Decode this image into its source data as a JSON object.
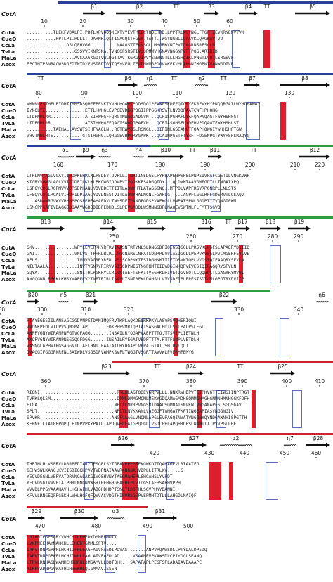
{
  "query_label": "CotA",
  "sequence_names": [
    "CotA",
    "CueO",
    "CcLa",
    "TvLa",
    "MaLa",
    "Asox"
  ],
  "blocks": [
    {
      "numbers": [
        "10",
        "20",
        "30",
        "40",
        "50",
        "60"
      ],
      "ss": [
        "β1",
        "β2",
        "TT",
        "β3",
        "β4",
        "TT",
        "β5"
      ],
      "rows": [
        "..........TLEKFVDALPI.PDTLKPVQQSKEKTYYEVTMEECTHQLHRD.LPPTRLWGYNGLFPGPTIEVKRNENVYVK",
        "...........RPTLPI.PDLLTTDARNRIQLTIGAGQSTFGGK.TATT..WGYNGNLLGPAVKLQRGKAVTVD",
        "...............DSLQFHVGG..........NAAGSTTFVNSGLLMHGRKVNTPVIQAGRNSRFSQLN",
        "..................GSSVVIKNTSNA.TVNGGFSRSTIVSQPMWVHGNAVNGGNPVFTPQG.ARIRID",
        "..................AVSAAGKGDTVWLDGTTAVTKGRGVIPVYSNVNGTLLLHGHDIKLPNGTIVNTLSRGSVF",
        "EPCTNTPSNRACWSDGFDINTDYEVSTPDTGVTQSYVFNLTEVDNWMGPDGVVKEKVMLINGNIMGPNIVANWGDTVE"
      ]
    },
    {
      "numbers": [
        "80",
        "90",
        "100",
        "110",
        "120",
        "130"
      ],
      "ss": [
        "TT",
        "β6",
        "η1",
        "TT",
        "η2",
        "TT",
        "β7",
        "β8"
      ],
      "rows": [
        "WMNNLPSTHFLPIDHTIHHSDSQHEEPEVKTVVHLHGGVTPDDSDGYPEAWFSKDFEQTGPYFKREVYHYPNQQRGAILWYHDHAMA",
        "IYNQLTE...............ETTLHWHGLEVPGEVDGGPQGIIPPGGKRSVTLNVDQPAATCWFHPHQHG",
        "LTDPNMLRR.............ATSIHWHGFFQRGTNWADGADGVN...QCPISPGHAFLYKFQAPNQAGTFWYHSHFGT",
        "LTDPNMLRR.............ATSIHWHGFFQAGTSWADGPAFVN...QCPIASGHSFLYDFHVPDQAGTFWYHSHLST",
        "..........TAEHALLAYSWTSIHFNAQLN..RGTRWYDGLRSNGL..QIPINLGSEAMLTFQAPHQWGIYWHHSHFTGW",
        "VHVTNNLHTE...........GTSIHWHGILQRGGEVHPNRYGAPK...QCAINPGETFTYRFTFDGENPGTYWYHSHSRAQYG"
      ]
    },
    {
      "numbers": [
        "160",
        "170",
        "180",
        "190",
        "200",
        "210",
        "220"
      ],
      "ss": [
        "α1",
        "β9",
        "η3",
        "η4",
        "β10",
        "TT",
        "β11",
        "TT",
        "β12"
      ],
      "rows": [
        "LTRLNVYAGLVGAYIIHDPKEKRLKLPSDEY.DVPLLITDRTINEDGSLFYPSAPENPSPSLPNPSIVPAFCGETILVNGKVWP",
        "KTGRVVAMGLAGLVVIEDDEILKLMLPKQWGIDDVPVIVQDKKFSADGQIDY...QLDVMTAAVGWFGDTLLTNGAIYPQ",
        "LSFQYCDGLRGPMVVYDPSDPHANLYDVDDETTIITLADWYHTLATAGSGNQ..MTPQLVAPFRGVRPGNRPLLNLSTS",
        "LFSQVCGGLRGALVIHDPIDPIAGLYDVDNESTVITLADWYHALNGNLFGAPLG.....AGPFLGGLRPFGDSRVTLGSAQV",
        "...ASDGMRGVWVVHHHPPQSPEHEAHAFDVLTNMSDFTPANGPGDSPVAFKGLLVNPATSPNLGGDPTITVQNGTPWM",
        "LGMGPPGAFIYDAGGGDQAAYWGDQDIDFEDHDLSLPEVGMQDLWSMNNGDPLNAQEVGWTNLFLFMTTSGVQ"
      ]
    },
    {
      "numbers": [
        "250",
        "260",
        "270",
        "280",
        "290"
      ],
      "ss": [
        "β13",
        "β14",
        "β15",
        "β16",
        "TT",
        "β17",
        "β18",
        "β19"
      ],
      "rows": [
        "GKV...............WPYLEVEPRKYRFRVINASNTRTYNLSLDNGGDFIQIGSDGGLLPRSVKLNSFSLAPAERYDIIID",
        "GAI...............VNLVSTTPHRLRLRLLNGCNARSLNFATSDNRPLYVIASDGGLLPEPVKVSELPVLMGERFEVLVE",
        "AELS...............IVNVVAGRRYRFRLVSLSCDPNYTFSIDGHNMTIIETDSVNTQPLVVDSIQIFAAQRYSFVLN",
        "NILTAALA...........INVTVGNRYRIRVVSISCDPNIGTNGFKMTIIEVDGINHQPVEVESIQIFAGQRYSFVLN",
        "GQYA...............SNLTHLRGKRYLLRLVNTAEFTSFKITVEGHKLHIVETDGVSQTLLQQEGLTLGAGYRYMVQL",
        "ANGQGNNLPECKLKHSYVAPEKVYTNPTRIRLINAELTSNIRFKLDGHSLLVIVSDFIPLPPESTSDTLMLGPGTRYDVIIP"
      ]
    },
    {
      "numbers": [
        "300",
        "310",
        "320",
        "330",
        "340",
        "350"
      ],
      "ss": [
        "β20",
        "η5",
        "β21",
        "β22",
        "η6"
      ],
      "rows": [
        "FTAYEGESIILANSAGCGGDVNPETDANIMQFRVTKPLAQKDESRKPKYLASYPSVQHERIQNI",
        "VNDNKPFDLVTLPVSQMGMAIAP.......FDKPHPVMRIQPIAISASGALPDTLSSLPALPSLEGL",
        "ANRPVGNYWIRANPNFGTVGFAGG.......INSAILRYQGAPVAEPTTTQ.TTSVIPLIETNLH",
        "ANQPVGNYWIRANPNSGGQGFDGG......INSAILRYEGATVEDPTTTA.PTTFSNPLVETDLH",
        "VASNGLGPHWIRGSAGGNIDTAFLHNT.FAATAILRYDGAPLVEPATGTAT.SHTDVLQLT",
        "DVAGGIFGGGPNRFNLSAIWDLVSGSDPVAMPKSVFLTWGGTVSGRTTAVVWLPVFRHFEMYG"
      ]
    },
    {
      "numbers": [
        "360",
        "370",
        "380",
        "390",
        "400",
        "410"
      ],
      "ss": [
        "β23",
        "TT",
        "β24",
        "TT",
        "β25"
      ],
      "rows": [
        "RIQNI.............................RTLKLAGTQDEYGRPVLLL.NNKRWHDPVTETPKVGTTEIWSIINPTRGT",
        "TVRKLQLSM.........................DPMLDMMGMQMLMEKYGDQAMAGMDHSQMMGHMGHGNMNHMNHGGKFDFH",
        "FTGA.............................NPLTLNRRPVNGSRTDAALSDMNATSNVKWTVNGANAPFSLSGGSGAV",
        "SPLT.............................NPLTLNVKKANLVAEGGFTVNGATFKPTINGEAPIASVNGGNGIV",
        "SPVKR...........................ANGFLLAGLVNQMLAPGLEVPAGQINVATVNGGNYQYNDGAWNHISPGTTH",
        "KFRNFILTAIPEPQPQLFTNPVPKYPAILTAPDQVHLLATGPQGGLIVSDLFPLAPQHRGFSLNAMTITTPVVPGLLHE"
      ]
    },
    {
      "numbers": [
        "420",
        "430",
        "440",
        "450",
        "460"
      ],
      "ss": [
        "β26",
        "β27",
        "α2",
        "η7",
        "β28"
      ],
      "rows": [
        "THPIHLHLVSFRVLDRRPFDIARYQESGELSYTGPAVPPPPSEKGWKDTIQAHAGEVLRIAATFG",
        "GEHWSWLKANG.KVIISDIQKKPVYTVDPNAIAAVRANGQAHVDPLLITRLKV.....G",
        "YEQVDEGNLVEFVATDRNNQAEAKGIVQSHVNYTASGMAHEPLSHGAHSLYVPDT",
        "YEQVDSGTVVVFTATPHRLNNGNVWSRIHFHGHGHAFHLPTVTDGSLAEHSAPHVPPH",
        "VVVDLPPGYAAAHAVHLHGHAFHLVADQHDHDPTSNLTLDQFHLSGVPHNYDANNI",
        "KFVVLRNGEQFPGEKHLVHLHGFQFQVVASVDGTHIPVRSGEPVEPMHTDTLLLAHGDLNAIQF"
      ]
    },
    {
      "numbers": [
        "470",
        "480",
        "490",
        "500"
      ],
      "ss": [
        "β29",
        "β30",
        "α3",
        "β31"
      ],
      "rows": [
        "LRIANTFGPSGRYVWHCHILEHEDYDMMRPMDIT",
        "LVKFNEEHAYMAHCHLLEHEDTGMMLGFTV....",
        "IRFVTDNPGPWFLHCHIDFHLEAGFAIVFAEDIPDVAS.......ANPVPQAWSDLCPTYDALDPSDQ",
        "IAFVTDNPGPWFLHCHIDWHLEAGLAIVFAEDLAD.....VSAANPVPKAWSDLCPIYDGLSEANQ",
        "LTRVLRNHAGLWAMHCHIDFHLDMGAMVLLDDTQHH...SAPAPAPLPEGFSPLADAIAVEAAAPC",
        "AIRFVADNPGVWAFHCHVEWHLQIGMMAVISSEN"
      ]
    }
  ]
}
